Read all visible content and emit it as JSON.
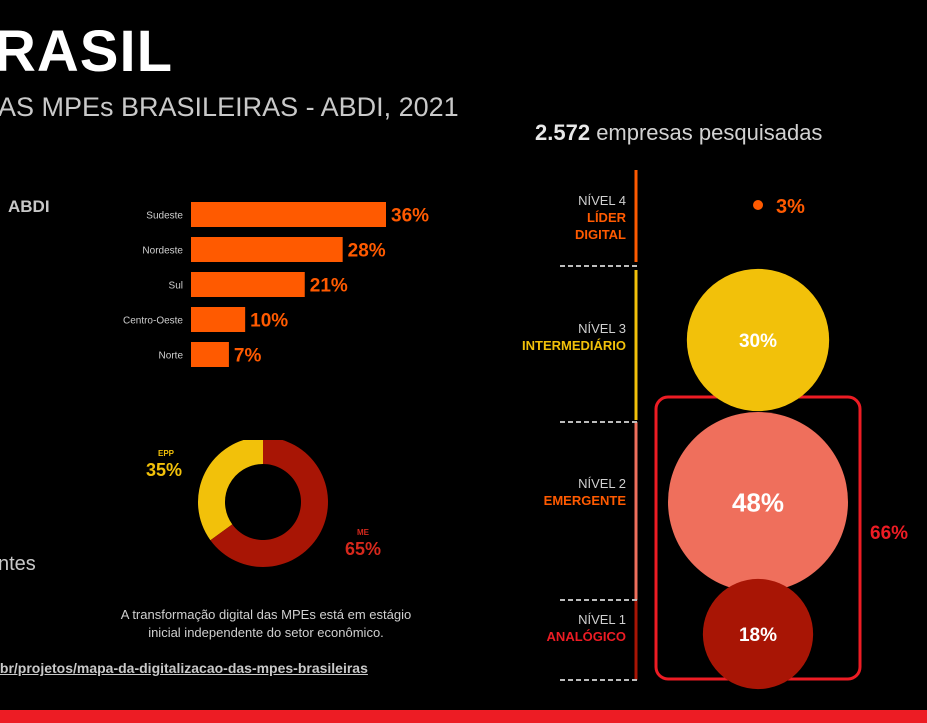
{
  "header": {
    "title": "RASIL",
    "subtitle": "AS MPEs BRASILEIRAS - ABDI, 2021",
    "surveyed_number": "2.572",
    "surveyed_text": "empresas pesquisadas"
  },
  "left": {
    "source_label": "ABDI",
    "partial_text": "ntes",
    "note_line1": "A transformação digital das MPEs está em estágio",
    "note_line2": "inicial independente do setor econômico.",
    "link": ".br/projetos/mapa-da-digitalizacao-das-mpes-brasileiras"
  },
  "colors": {
    "orange": "#ff5a00",
    "yellow": "#f2c10a",
    "salmon": "#ef6f5c",
    "darkred": "#a81505",
    "red": "#ed1c24"
  },
  "chart_data": [
    {
      "type": "bar",
      "orientation": "horizontal",
      "title": "",
      "categories": [
        "Sudeste",
        "Nordeste",
        "Sul",
        "Centro-Oeste",
        "Norte"
      ],
      "values": [
        36,
        28,
        21,
        10,
        7
      ],
      "labels": [
        "36%",
        "28%",
        "21%",
        "10%",
        "7%"
      ],
      "xlim": [
        0,
        36
      ]
    },
    {
      "type": "pie",
      "donut": true,
      "categories": [
        "EPP",
        "ME"
      ],
      "values": [
        35,
        65
      ],
      "labels": [
        "35%",
        "65%"
      ]
    },
    {
      "type": "scatter",
      "subtype": "bubble",
      "categories": [
        "NÍVEL 4",
        "NÍVEL 3",
        "NÍVEL 2",
        "NÍVEL 1"
      ],
      "level_names": [
        "LÍDER DIGITAL",
        "INTERMEDIÁRIO",
        "EMERGENTE",
        "ANALÓGICO"
      ],
      "values": [
        3,
        30,
        48,
        18
      ],
      "labels": [
        "3%",
        "30%",
        "48%",
        "18%"
      ],
      "group_total_label": "66%"
    }
  ]
}
